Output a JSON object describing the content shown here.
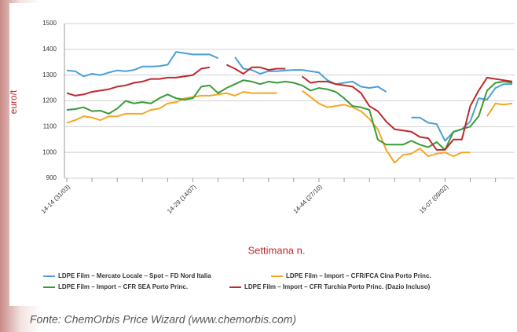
{
  "chart_data": {
    "type": "line",
    "y_label": "euro/t",
    "x_label": "Settimana n.",
    "source": "Fonte: ChemOrbis Price Wizard (www.chemorbis.com)",
    "categories": [
      "14-14 (31/03)",
      null,
      null,
      null,
      null,
      null,
      null,
      null,
      null,
      null,
      null,
      null,
      null,
      null,
      null,
      "14-29 (14/07)",
      null,
      null,
      null,
      null,
      null,
      null,
      null,
      null,
      null,
      null,
      null,
      null,
      null,
      null,
      "14-44 (27/10)",
      null,
      null,
      null,
      null,
      null,
      null,
      null,
      null,
      null,
      null,
      null,
      null,
      null,
      null,
      "15-07 (09/02)",
      null,
      null,
      null,
      null,
      null,
      null,
      null,
      null
    ],
    "series": [
      {
        "name": "LDPE Film – Mercato Locale – Spot – FD Nord Italia",
        "color": "#4a9fd4",
        "values": [
          1318,
          1315,
          1295,
          1305,
          1300,
          1310,
          1318,
          1315,
          1320,
          1333,
          1333,
          1335,
          1340,
          1390,
          1385,
          1380,
          1380,
          1380,
          1365,
          null,
          1370,
          1325,
          1320,
          1305,
          1315,
          1315,
          1318,
          1320,
          1320,
          1315,
          1310,
          1280,
          1265,
          1270,
          1275,
          1255,
          1250,
          1255,
          1235,
          null,
          null,
          1135,
          1135,
          1115,
          1110,
          1045,
          1080,
          1090,
          1120,
          1210,
          1205,
          1250,
          1265,
          1265
        ]
      },
      {
        "name": "LDPE Film – Import – CFR/FCA Cina Porto Princ.",
        "color": "#f5a623",
        "values": [
          1115,
          1125,
          1140,
          1135,
          1125,
          1140,
          1140,
          1150,
          1150,
          1150,
          1165,
          1170,
          1190,
          1195,
          1210,
          1215,
          1220,
          1220,
          1225,
          1230,
          1220,
          1235,
          1230,
          1230,
          1230,
          1230,
          null,
          null,
          1240,
          1215,
          1190,
          1175,
          1180,
          1185,
          1175,
          1160,
          1130,
          1090,
          1010,
          960,
          990,
          995,
          1015,
          985,
          995,
          1000,
          985,
          1000,
          1000,
          null,
          1140,
          1190,
          1185,
          1190
        ]
      },
      {
        "name": "LDPE Film – Import – CFR SEA Porto Princ.",
        "color": "#3a9a3a",
        "values": [
          1165,
          1168,
          1175,
          1160,
          1162,
          1150,
          1170,
          1200,
          1190,
          1195,
          1190,
          1210,
          1225,
          1210,
          1205,
          1210,
          1255,
          1260,
          1230,
          1250,
          1265,
          1280,
          1275,
          1265,
          1275,
          1270,
          1275,
          1270,
          1260,
          1240,
          1250,
          1245,
          1235,
          1210,
          1180,
          1175,
          1165,
          1050,
          1030,
          1030,
          1030,
          1045,
          1030,
          1020,
          1040,
          1010,
          1080,
          1090,
          1100,
          1140,
          1240,
          1270,
          1275,
          1270
        ]
      },
      {
        "name": "LDPE Film – Import – CFR Turchia Porto Princ. (Dazio Incluso)",
        "color": "#c0282d",
        "values": [
          1230,
          1220,
          1225,
          1235,
          1240,
          1245,
          1255,
          1260,
          1270,
          1275,
          1285,
          1285,
          1290,
          1290,
          1295,
          1300,
          1325,
          1330,
          null,
          1340,
          1325,
          1305,
          1330,
          1330,
          1320,
          1325,
          1325,
          null,
          1295,
          1270,
          1275,
          1275,
          1265,
          1260,
          1255,
          1230,
          1180,
          1160,
          1120,
          1090,
          1085,
          1080,
          1060,
          1055,
          1010,
          1010,
          1050,
          1050,
          1180,
          1240,
          1290,
          1285,
          1280,
          1275
        ]
      }
    ],
    "ylim": [
      900,
      1500
    ],
    "yticks": [
      900,
      1000,
      1100,
      1200,
      1300,
      1400,
      1500
    ],
    "grid": true
  }
}
